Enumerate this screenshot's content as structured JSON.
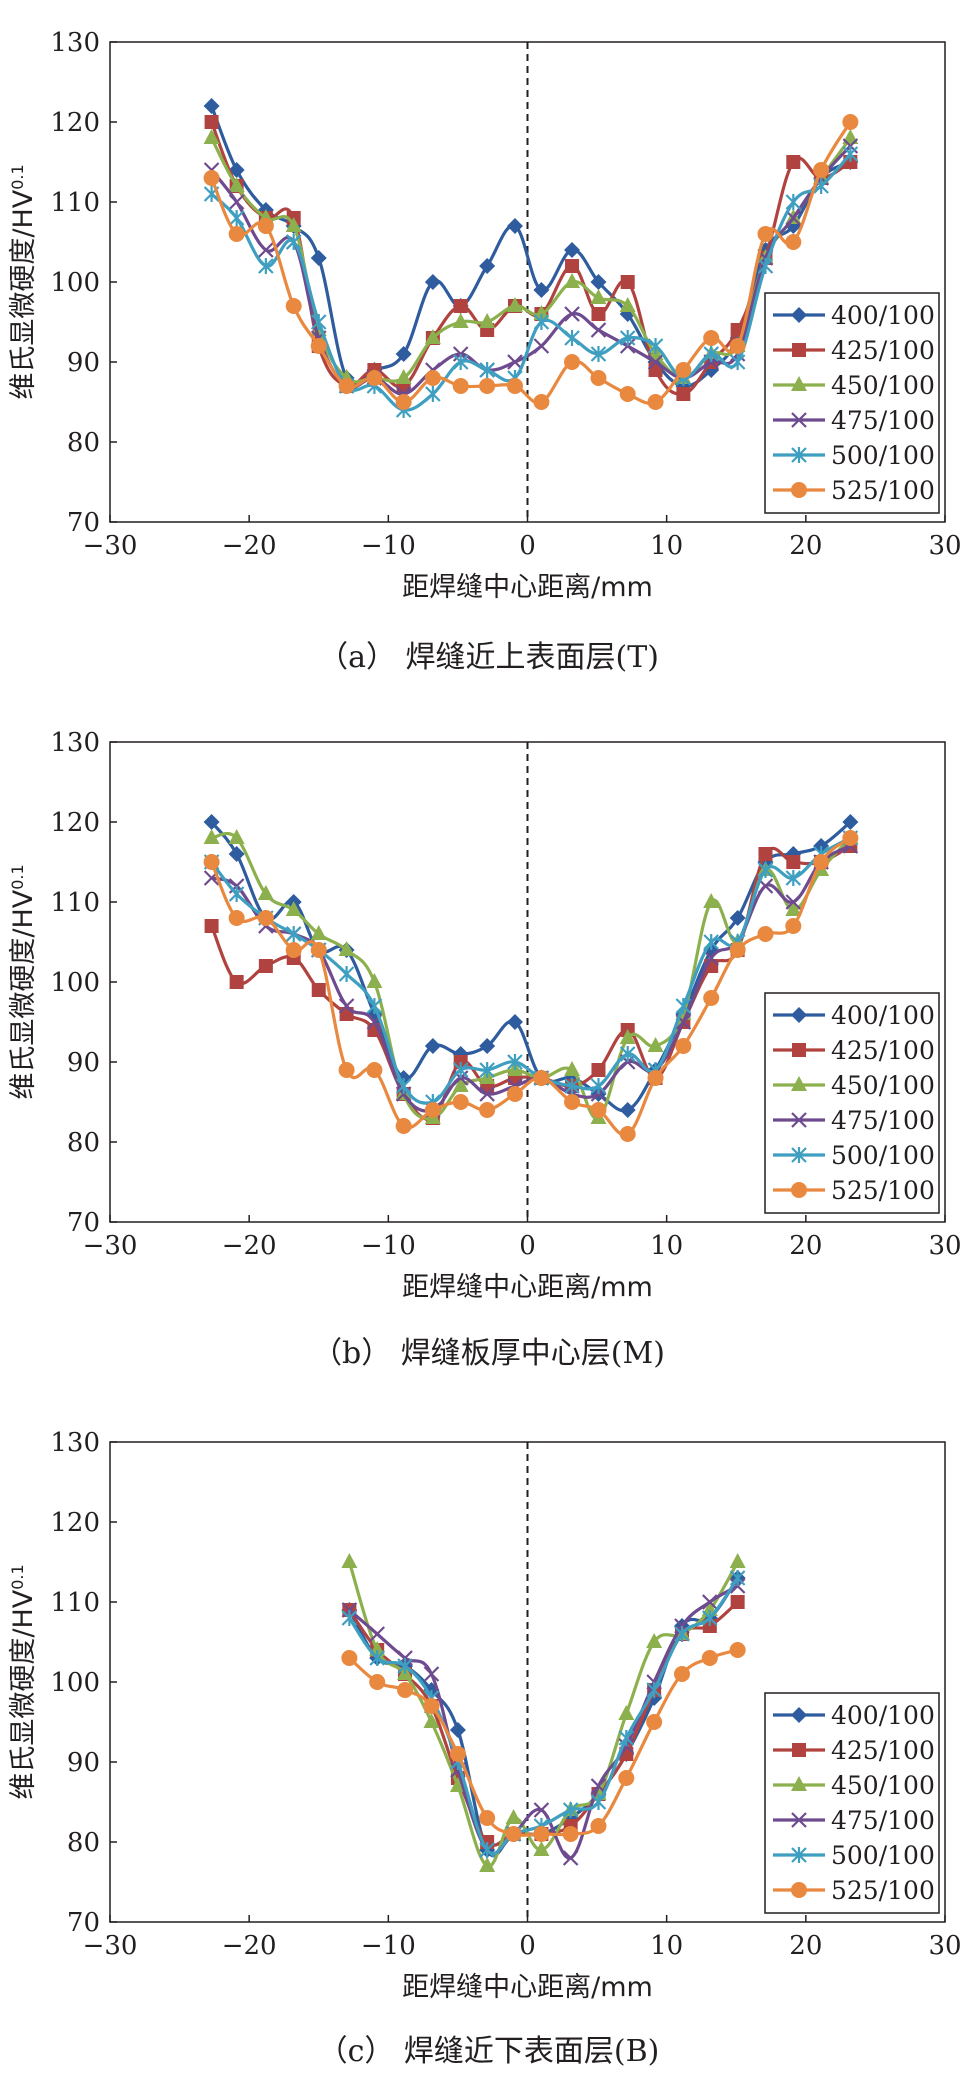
{
  "chart_data": [
    {
      "type": "line",
      "caption": "（a） 焊缝近上表面层(T)",
      "xlabel": "距焊缝中心距离/mm",
      "ylabel": "维氏显微硬度/HV",
      "ylabel_sup": "0.1",
      "xlim": [
        -30,
        30
      ],
      "ylim": [
        70,
        130
      ],
      "xticks": [
        -30,
        -20,
        -10,
        0,
        10,
        20,
        30
      ],
      "yticks": [
        70,
        80,
        90,
        100,
        110,
        120,
        130
      ],
      "legend": "right",
      "x": [
        -22.7,
        -20.9,
        -18.8,
        -16.8,
        -15.0,
        -13.0,
        -11.0,
        -8.9,
        -6.8,
        -4.8,
        -2.9,
        -0.9,
        1.0,
        3.2,
        5.1,
        7.2,
        9.2,
        11.2,
        13.2,
        15.1,
        17.1,
        19.1,
        21.1,
        23.2
      ],
      "series": [
        {
          "name": "400/100",
          "color": "#2e5c9f",
          "marker": "diamond",
          "values": [
            122,
            114,
            109,
            107,
            103,
            88,
            89,
            91,
            100,
            97,
            102,
            107,
            99,
            104,
            100,
            96,
            90,
            87,
            89,
            93,
            104,
            107,
            113,
            115
          ]
        },
        {
          "name": "425/100",
          "color": "#b0433f",
          "marker": "square",
          "values": [
            120,
            112,
            108,
            108,
            92,
            87,
            89,
            87,
            93,
            97,
            94,
            97,
            96,
            102,
            96,
            100,
            89,
            86,
            90,
            94,
            103,
            115,
            113,
            115
          ]
        },
        {
          "name": "450/100",
          "color": "#8cb04d",
          "marker": "triangle",
          "values": [
            118,
            112,
            108,
            107,
            94,
            88,
            88,
            88,
            93,
            95,
            95,
            97,
            96,
            100,
            98,
            97,
            91,
            88,
            91,
            92,
            103,
            108,
            113,
            118
          ]
        },
        {
          "name": "475/100",
          "color": "#6e4a8e",
          "marker": "x",
          "values": [
            114,
            110,
            104,
            105,
            93,
            87,
            88,
            86,
            89,
            91,
            89,
            90,
            92,
            96,
            94,
            92,
            90,
            88,
            90,
            91,
            103,
            108,
            113,
            117
          ]
        },
        {
          "name": "500/100",
          "color": "#3e9fc0",
          "marker": "asterisk",
          "values": [
            111,
            108,
            102,
            105,
            95,
            87,
            87,
            84,
            86,
            90,
            89,
            88,
            95,
            93,
            91,
            93,
            92,
            88,
            91,
            90,
            102,
            110,
            112,
            116
          ]
        },
        {
          "name": "525/100",
          "color": "#e9883f",
          "marker": "circle",
          "values": [
            113,
            106,
            107,
            97,
            92,
            87,
            88,
            85,
            88,
            87,
            87,
            87,
            85,
            90,
            88,
            86,
            85,
            89,
            93,
            92,
            106,
            105,
            114,
            120
          ]
        }
      ]
    },
    {
      "type": "line",
      "caption": "（b） 焊缝板厚中心层(M)",
      "xlabel": "距焊缝中心距离/mm",
      "ylabel": "维氏显微硬度/HV",
      "ylabel_sup": "0.1",
      "xlim": [
        -30,
        30
      ],
      "ylim": [
        70,
        130
      ],
      "xticks": [
        -30,
        -20,
        -10,
        0,
        10,
        20,
        30
      ],
      "yticks": [
        70,
        80,
        90,
        100,
        110,
        120,
        130
      ],
      "legend": "right",
      "x": [
        -22.7,
        -20.9,
        -18.8,
        -16.8,
        -15.0,
        -13.0,
        -11.0,
        -8.9,
        -6.8,
        -4.8,
        -2.9,
        -0.9,
        1.0,
        3.2,
        5.1,
        7.2,
        9.2,
        11.2,
        13.2,
        15.1,
        17.1,
        19.1,
        21.1,
        23.2
      ],
      "series": [
        {
          "name": "400/100",
          "color": "#2e5c9f",
          "marker": "diamond",
          "values": [
            120,
            116,
            108,
            110,
            104,
            104,
            96,
            88,
            92,
            91,
            92,
            95,
            88,
            88,
            86,
            84,
            89,
            96,
            104,
            108,
            115,
            116,
            117,
            120
          ]
        },
        {
          "name": "425/100",
          "color": "#b0433f",
          "marker": "square",
          "values": [
            107,
            100,
            102,
            103,
            99,
            96,
            94,
            86,
            83,
            90,
            87,
            88,
            88,
            87,
            89,
            94,
            88,
            95,
            102,
            104,
            116,
            115,
            115,
            117
          ]
        },
        {
          "name": "450/100",
          "color": "#8cb04d",
          "marker": "triangle",
          "values": [
            118,
            118,
            111,
            109,
            106,
            104,
            100,
            86,
            83,
            87,
            88,
            89,
            88,
            89,
            83,
            93,
            92,
            96,
            110,
            105,
            114,
            109,
            114,
            118
          ]
        },
        {
          "name": "475/100",
          "color": "#6e4a8e",
          "marker": "x",
          "values": [
            113,
            112,
            107,
            106,
            104,
            97,
            95,
            86,
            84,
            88,
            86,
            87,
            88,
            86,
            86,
            90,
            89,
            95,
            103,
            105,
            112,
            110,
            115,
            117
          ]
        },
        {
          "name": "500/100",
          "color": "#3e9fc0",
          "marker": "asterisk",
          "values": [
            115,
            111,
            108,
            106,
            104,
            101,
            97,
            87,
            85,
            89,
            89,
            90,
            88,
            87,
            87,
            91,
            89,
            97,
            105,
            105,
            114,
            113,
            116,
            118
          ]
        },
        {
          "name": "525/100",
          "color": "#e9883f",
          "marker": "circle",
          "values": [
            115,
            108,
            108,
            104,
            104,
            89,
            89,
            82,
            84,
            85,
            84,
            86,
            88,
            85,
            84,
            81,
            88,
            92,
            98,
            104,
            106,
            107,
            115,
            118
          ]
        }
      ]
    },
    {
      "type": "line",
      "caption": "（c） 焊缝近下表面层(B)",
      "xlabel": "距焊缝中心距离/mm",
      "ylabel": "维氏显微硬度/HV",
      "ylabel_sup": "0.1",
      "xlim": [
        -30,
        30
      ],
      "ylim": [
        70,
        130
      ],
      "xticks": [
        -30,
        -20,
        -10,
        0,
        10,
        20,
        30
      ],
      "yticks": [
        70,
        80,
        90,
        100,
        110,
        120,
        130
      ],
      "legend": "right",
      "x": [
        -12.8,
        -10.8,
        -8.8,
        -6.9,
        -5.0,
        -2.9,
        -1.0,
        1.0,
        3.1,
        5.1,
        7.1,
        9.1,
        11.1,
        13.1,
        15.1
      ],
      "series": [
        {
          "name": "400/100",
          "color": "#2e5c9f",
          "marker": "diamond",
          "values": [
            109,
            103,
            102,
            99,
            94,
            79,
            81,
            81,
            83,
            86,
            91,
            98,
            107,
            108,
            113
          ]
        },
        {
          "name": "425/100",
          "color": "#b0433f",
          "marker": "square",
          "values": [
            109,
            104,
            101,
            97,
            88,
            80,
            81,
            81,
            82,
            86,
            91,
            99,
            106,
            107,
            110
          ]
        },
        {
          "name": "450/100",
          "color": "#8cb04d",
          "marker": "triangle",
          "values": [
            115,
            104,
            101,
            95,
            87,
            77,
            83,
            79,
            84,
            86,
            96,
            105,
            106,
            109,
            115
          ]
        },
        {
          "name": "475/100",
          "color": "#6e4a8e",
          "marker": "x",
          "values": [
            109,
            106,
            103,
            101,
            89,
            79,
            81,
            84,
            78,
            87,
            92,
            100,
            107,
            110,
            112
          ]
        },
        {
          "name": "500/100",
          "color": "#3e9fc0",
          "marker": "asterisk",
          "values": [
            108,
            103,
            102,
            98,
            90,
            79,
            81,
            82,
            84,
            85,
            93,
            99,
            106,
            108,
            113
          ]
        },
        {
          "name": "525/100",
          "color": "#e9883f",
          "marker": "circle",
          "values": [
            103,
            100,
            99,
            97,
            91,
            83,
            81,
            81,
            81,
            82,
            88,
            95,
            101,
            103,
            104
          ]
        }
      ]
    }
  ]
}
